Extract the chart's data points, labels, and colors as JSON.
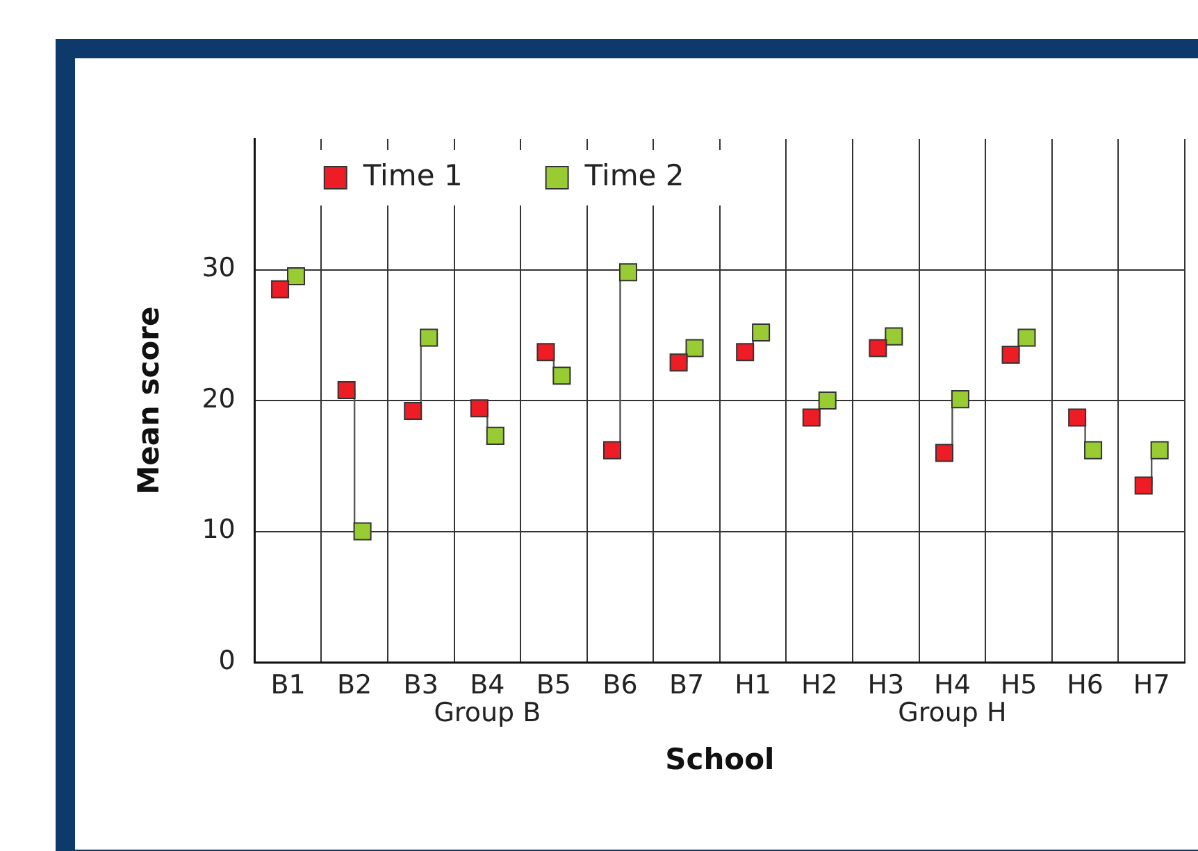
{
  "chart_data": {
    "type": "scatter",
    "xlabel": "School",
    "ylabel": "Mean score",
    "categories": [
      "B1",
      "B2",
      "B3",
      "B4",
      "B5",
      "B6",
      "B7",
      "H1",
      "H2",
      "H3",
      "H4",
      "H5",
      "H6",
      "H7"
    ],
    "series": [
      {
        "name": "Time 1",
        "color": "#ee1c25",
        "values": [
          28.5,
          20.8,
          19.2,
          19.4,
          23.7,
          16.2,
          22.9,
          23.7,
          18.7,
          24.0,
          16.0,
          23.5,
          18.7,
          13.5
        ],
        "errors": [
          [
            28.5,
            29.5
          ],
          [
            10.0,
            20.8
          ],
          [
            19.2,
            24.8
          ],
          [
            17.3,
            19.4
          ],
          [
            21.9,
            23.7
          ],
          [
            16.2,
            29.8
          ],
          [
            22.9,
            24.0
          ],
          [
            23.7,
            25.2
          ],
          [
            18.7,
            20.0
          ],
          [
            24.0,
            24.9
          ],
          [
            16.0,
            20.1
          ],
          [
            23.5,
            24.8
          ],
          [
            16.2,
            18.7
          ],
          [
            13.5,
            16.2
          ]
        ]
      },
      {
        "name": "Time 2",
        "color": "#99cc33",
        "values": [
          29.5,
          10.0,
          24.8,
          17.3,
          21.9,
          29.8,
          24.0,
          25.2,
          20.0,
          24.9,
          20.1,
          24.8,
          16.2,
          16.2
        ]
      }
    ],
    "ylim": [
      0,
      40
    ],
    "yticks": [
      0,
      10,
      20,
      30
    ],
    "grid": true,
    "legend": "top left",
    "marker": "square",
    "annotations": [
      "Group B",
      "Group H"
    ]
  }
}
